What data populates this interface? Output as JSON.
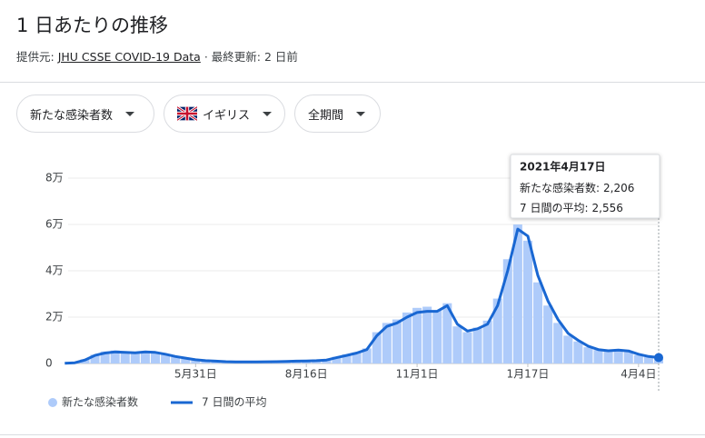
{
  "header": {
    "title": "1 日あたりの推移",
    "source_label": "提供元:",
    "source_link": "JHU CSSE COVID-19 Data",
    "separator": "·",
    "updated": "最終更新: 2 日前"
  },
  "filters": [
    "新たな感染者数",
    "イギリス",
    "全期間"
  ],
  "chart_data": {
    "type": "bar-line",
    "categories": [
      null,
      null,
      null,
      null,
      null,
      null,
      null,
      null,
      null,
      null,
      null,
      null,
      null,
      "5月31日",
      null,
      null,
      null,
      null,
      null,
      null,
      null,
      null,
      null,
      null,
      "8月16日",
      null,
      null,
      null,
      null,
      null,
      null,
      null,
      null,
      null,
      null,
      "11月1日",
      null,
      null,
      null,
      null,
      null,
      null,
      null,
      null,
      null,
      null,
      "1月17日",
      null,
      null,
      null,
      null,
      null,
      null,
      null,
      null,
      null,
      null,
      "4月4日",
      null,
      null
    ],
    "series": [
      {
        "name": "新たな感染者数",
        "type": "bar",
        "color": "#aecbfa",
        "values": [
          50,
          400,
          1800,
          3800,
          5200,
          5600,
          5000,
          4900,
          5300,
          4700,
          3800,
          2800,
          2000,
          1500,
          1100,
          900,
          750,
          650,
          600,
          650,
          750,
          800,
          950,
          1050,
          1150,
          1300,
          1700,
          2900,
          3900,
          4800,
          6500,
          13500,
          17500,
          19000,
          22000,
          24000,
          24500,
          23000,
          26000,
          16000,
          13500,
          15500,
          18500,
          28000,
          45000,
          60000,
          53000,
          35000,
          25000,
          17500,
          12000,
          9500,
          7000,
          5800,
          5300,
          5600,
          5000,
          3600,
          2800,
          2206
        ]
      },
      {
        "name": "7 日間の平均",
        "type": "line",
        "color": "#1967d2",
        "values": [
          100,
          300,
          1500,
          3500,
          4500,
          5000,
          4800,
          4600,
          5000,
          4800,
          4000,
          3000,
          2300,
          1600,
          1200,
          1000,
          800,
          700,
          650,
          650,
          750,
          800,
          900,
          1000,
          1100,
          1200,
          1500,
          2500,
          3500,
          4500,
          6000,
          12000,
          16000,
          17500,
          20000,
          22000,
          22500,
          22500,
          25000,
          17000,
          14000,
          15000,
          17000,
          25000,
          40000,
          58000,
          55000,
          38000,
          27000,
          19000,
          13000,
          10000,
          7500,
          6000,
          5500,
          5800,
          5400,
          4000,
          3000,
          2556
        ]
      }
    ],
    "ylim": [
      0,
      80000
    ],
    "yticks": [
      0,
      {
        "value": 20000,
        "label": "2万"
      },
      {
        "value": 40000,
        "label": "4万"
      },
      {
        "value": 60000,
        "label": "6万"
      },
      {
        "value": 80000,
        "label": "8万"
      }
    ],
    "grid": true,
    "tooltip": {
      "date": "2021年4月17日",
      "rows": [
        {
          "label": "新たな感染者数:",
          "value": "2,206"
        },
        {
          "label": "7 日間の平均:",
          "value": "2,556"
        }
      ]
    }
  }
}
